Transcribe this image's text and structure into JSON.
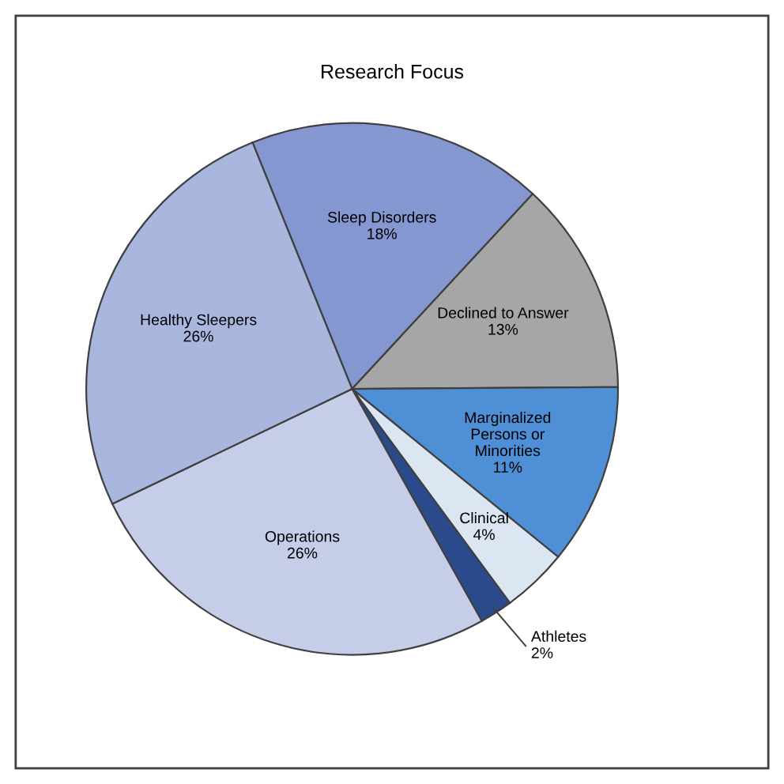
{
  "chart_data": {
    "type": "pie",
    "title": "Research Focus",
    "categories": [
      "Sleep Disorders",
      "Declined to Answer",
      "Marginalized Persons or Minorities",
      "Clinical",
      "Athletes",
      "Operations",
      "Healthy Sleepers"
    ],
    "values": [
      18,
      13,
      11,
      4,
      2,
      26,
      26
    ],
    "colors": [
      "#8497d0",
      "#a6a6a6",
      "#4f8fd6",
      "#dce6f2",
      "#2a4a8c",
      "#c5cde8",
      "#a9b6dd"
    ],
    "value_labels": [
      "18%",
      "13%",
      "11%",
      "4%",
      "2%",
      "26%",
      "26%"
    ],
    "legend": false
  }
}
